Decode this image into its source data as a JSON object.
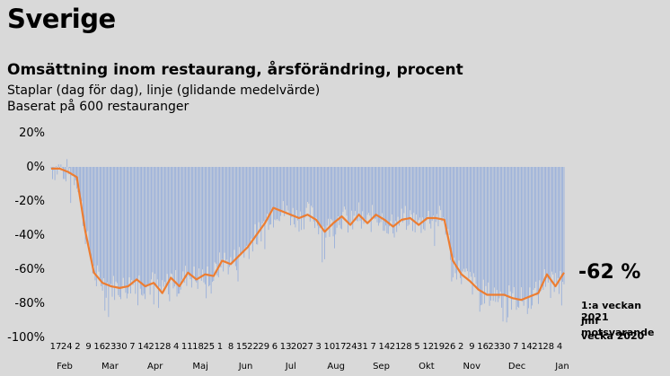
{
  "page": {
    "title": "Sverige",
    "subtitle": "Omsättning inom restaurang, årsförändring, procent",
    "description_lines": [
      "Staplar (dag för dag), linje (glidande medelvärde)",
      "Baserat på 600 restauranger"
    ],
    "callout_value": "-62 %",
    "callout_note_lines": [
      "1:a veckan 2021",
      "jmf motsvarande",
      "vecka 2020"
    ]
  },
  "colors": {
    "background": "#d9d9d9",
    "bars": "#8ea9db",
    "line": "#ed7d31"
  },
  "chart_data": {
    "type": "bar",
    "ylim": [
      -100,
      20
    ],
    "y_ticks": [
      "20%",
      "0%",
      "-20%",
      "-40%",
      "-60%",
      "-80%",
      "-100%"
    ],
    "x_day_labels": [
      "17",
      "24",
      "2",
      "9",
      "16",
      "23",
      "30",
      "7",
      "14",
      "21",
      "28",
      "4",
      "11",
      "18",
      "25",
      "1",
      "8",
      "15",
      "22",
      "29",
      "6",
      "13",
      "20",
      "27",
      "3",
      "10",
      "17",
      "24",
      "31",
      "7",
      "14",
      "21",
      "28",
      "5",
      "12",
      "19",
      "26",
      "2",
      "9",
      "16",
      "23",
      "30",
      "7",
      "14",
      "21",
      "28",
      "4"
    ],
    "x_month_labels": [
      "Feb",
      "Mar",
      "Apr",
      "Maj",
      "Jun",
      "Jul",
      "Aug",
      "Sep",
      "Okt",
      "Nov",
      "Dec",
      "Jan"
    ],
    "weekly_moving_average": [
      -1,
      -1,
      -3,
      -6,
      -38,
      -62,
      -68,
      -70,
      -71,
      -70,
      -66,
      -70,
      -68,
      -74,
      -65,
      -70,
      -62,
      -66,
      -63,
      -64,
      -55,
      -57,
      -52,
      -47,
      -40,
      -33,
      -24,
      -26,
      -28,
      -30,
      -28,
      -31,
      -38,
      -33,
      -29,
      -34,
      -28,
      -33,
      -28,
      -31,
      -35,
      -31,
      -30,
      -34,
      -30,
      -30,
      -31,
      -55,
      -63,
      -67,
      -72,
      -75,
      -75,
      -75,
      -77,
      -78,
      -76,
      -74,
      -63,
      -70,
      -62
    ],
    "daily_bar_spread": 8
  }
}
